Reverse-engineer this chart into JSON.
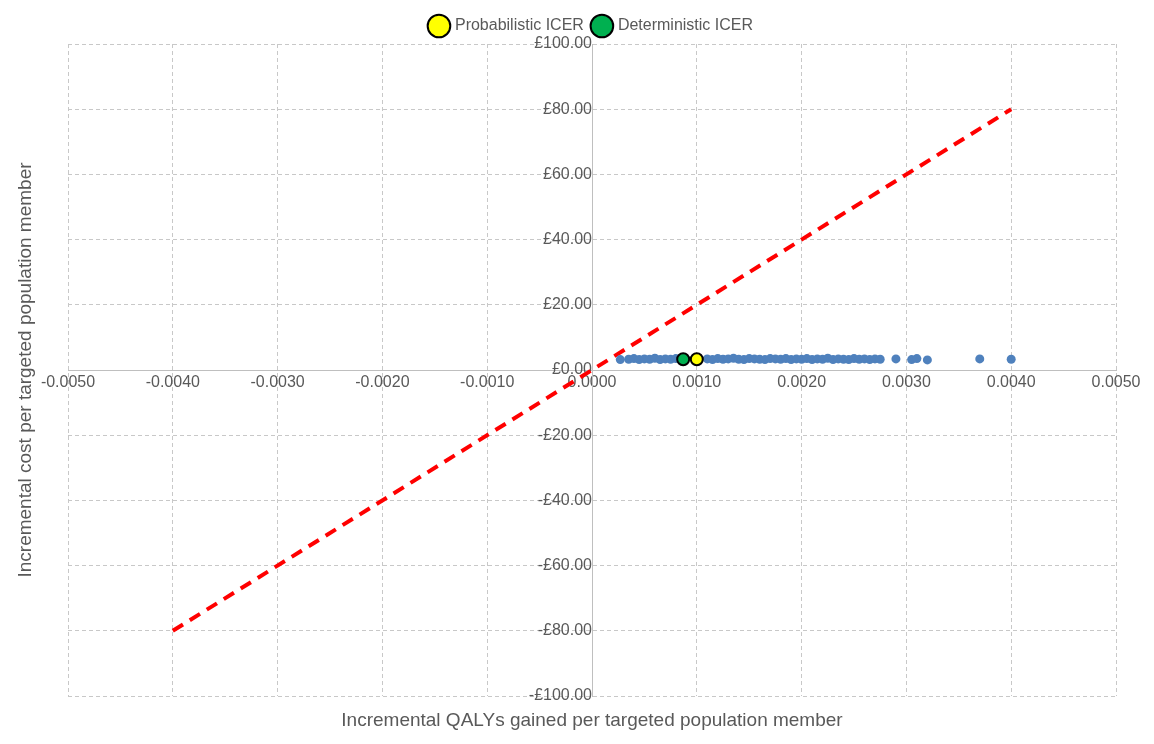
{
  "chart_data": {
    "type": "scatter",
    "xlabel": "Incremental QALYs gained per targeted population member",
    "ylabel": "Incremental cost per targeted population member",
    "xlim": [
      -0.005,
      0.005
    ],
    "ylim": [
      -100,
      100
    ],
    "xticks": [
      {
        "value": -0.005,
        "label": "-0.0050"
      },
      {
        "value": -0.004,
        "label": "-0.0040"
      },
      {
        "value": -0.003,
        "label": "-0.0030"
      },
      {
        "value": -0.002,
        "label": "-0.0020"
      },
      {
        "value": -0.001,
        "label": "-0.0010"
      },
      {
        "value": 0,
        "label": "0.0000"
      },
      {
        "value": 0.001,
        "label": "0.0010"
      },
      {
        "value": 0.002,
        "label": "0.0020"
      },
      {
        "value": 0.003,
        "label": "0.0030"
      },
      {
        "value": 0.004,
        "label": "0.0040"
      },
      {
        "value": 0.005,
        "label": "0.0050"
      }
    ],
    "yticks": [
      {
        "value": -100,
        "label": "-£100.00"
      },
      {
        "value": -80,
        "label": "-£80.00"
      },
      {
        "value": -60,
        "label": "-£60.00"
      },
      {
        "value": -40,
        "label": "-£40.00"
      },
      {
        "value": -20,
        "label": "-£20.00"
      },
      {
        "value": 0,
        "label": "£0.00"
      },
      {
        "value": 20,
        "label": "£20.00"
      },
      {
        "value": 40,
        "label": "£40.00"
      },
      {
        "value": 60,
        "label": "£60.00"
      },
      {
        "value": 80,
        "label": "£80.00"
      },
      {
        "value": 100,
        "label": "£100.00"
      }
    ],
    "grid": true,
    "legend": "top",
    "marker": "circle",
    "series": [
      {
        "type": "line",
        "color": "#ff0000",
        "line_style": "dashed",
        "marker": "none",
        "x": [
          -0.004,
          0.004
        ],
        "values": [
          -80,
          80
        ]
      },
      {
        "color": "#4f81bd",
        "x": [
          0.00027,
          0.00035,
          0.0004,
          0.00045,
          0.0005,
          0.00055,
          0.0006,
          0.00065,
          0.0007,
          0.00075,
          0.0008,
          0.0011,
          0.00115,
          0.0012,
          0.00125,
          0.0013,
          0.00135,
          0.0014,
          0.00145,
          0.0015,
          0.00155,
          0.0016,
          0.00165,
          0.0017,
          0.00175,
          0.0018,
          0.00185,
          0.0019,
          0.00195,
          0.002,
          0.00205,
          0.0021,
          0.00215,
          0.0022,
          0.00225,
          0.0023,
          0.00235,
          0.0024,
          0.00245,
          0.0025,
          0.00255,
          0.0026,
          0.00265,
          0.0027,
          0.00275,
          0.0029,
          0.00305,
          0.0031,
          0.0032,
          0.0037,
          0.004
        ],
        "values": [
          3.2,
          3.3,
          3.5,
          3.2,
          3.4,
          3.3,
          3.6,
          3.2,
          3.4,
          3.3,
          3.5,
          3.4,
          3.2,
          3.5,
          3.3,
          3.4,
          3.6,
          3.3,
          3.2,
          3.5,
          3.4,
          3.3,
          3.2,
          3.5,
          3.4,
          3.3,
          3.5,
          3.2,
          3.4,
          3.3,
          3.5,
          3.2,
          3.4,
          3.3,
          3.6,
          3.2,
          3.4,
          3.3,
          3.2,
          3.5,
          3.3,
          3.4,
          3.2,
          3.4,
          3.3,
          3.4,
          3.2,
          3.5,
          3.1,
          3.4,
          3.3
        ]
      },
      {
        "name": "Probabilistic ICER",
        "color": "#ffff00",
        "x": [
          0.001
        ],
        "values": [
          3.3
        ]
      },
      {
        "name": "Deterministic ICER",
        "color": "#00b050",
        "x": [
          0.00087
        ],
        "values": [
          3.3
        ]
      }
    ]
  }
}
